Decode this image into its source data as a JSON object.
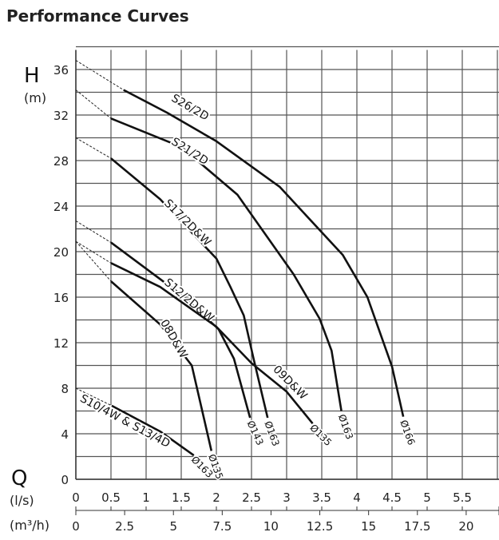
{
  "chart_data": {
    "type": "line",
    "title": "Performance Curves",
    "ylabel": "H",
    "yunit": "(m)",
    "xlabel": "Q",
    "xunit": "(l/s)",
    "x2unit": "(m³/h)",
    "xlim": [
      0,
      6
    ],
    "ylim": [
      0,
      38
    ],
    "grid": true,
    "y_ticks": [
      0,
      4,
      8,
      12,
      16,
      20,
      24,
      28,
      32,
      36
    ],
    "x_ticks": [
      "0",
      "0.5",
      "1",
      "1.5",
      "2",
      "2.5",
      "3",
      "3.5",
      "4",
      "4.5",
      "5",
      "5.5"
    ],
    "x2_ticks": [
      "0",
      "2.5",
      "5",
      "7.5",
      "10",
      "12.5",
      "15",
      "17.5",
      "20"
    ],
    "series": [
      {
        "name": "S26/2D",
        "end_label": "Ø166",
        "dashed": [
          [
            0,
            36.8
          ],
          [
            0.68,
            34.2
          ]
        ],
        "points": [
          [
            0.68,
            34.2
          ],
          [
            1.3,
            32.2
          ],
          [
            2.0,
            29.7
          ],
          [
            2.9,
            25.7
          ],
          [
            3.8,
            19.7
          ],
          [
            4.15,
            16.0
          ],
          [
            4.5,
            9.9
          ],
          [
            4.66,
            5.5
          ]
        ]
      },
      {
        "name": "S21/2D",
        "end_label": "Ø163",
        "dashed": [
          [
            0,
            34.2
          ],
          [
            0.5,
            31.7
          ]
        ],
        "points": [
          [
            0.5,
            31.7
          ],
          [
            1.5,
            29.2
          ],
          [
            2.3,
            25.0
          ],
          [
            3.1,
            18.0
          ],
          [
            3.47,
            14.1
          ],
          [
            3.64,
            11.3
          ],
          [
            3.78,
            6.0
          ]
        ]
      },
      {
        "name": "S17/2D&W",
        "end_label": "Ø163",
        "dashed": [
          [
            0,
            30.0
          ],
          [
            0.5,
            28.2
          ]
        ],
        "points": [
          [
            0.5,
            28.2
          ],
          [
            1.2,
            24.6
          ],
          [
            2.0,
            19.4
          ],
          [
            2.2,
            16.9
          ],
          [
            2.39,
            14.4
          ],
          [
            2.53,
            10.6
          ],
          [
            2.73,
            5.4
          ]
        ]
      },
      {
        "name": "S12/2D&W",
        "end_label": "Ø143",
        "dashed": [
          [
            0,
            22.7
          ],
          [
            0.5,
            20.8
          ]
        ],
        "points": [
          [
            0.5,
            20.8
          ],
          [
            1.5,
            16.2
          ],
          [
            2.03,
            13.2
          ],
          [
            2.25,
            10.6
          ],
          [
            2.48,
            5.4
          ]
        ]
      },
      {
        "name": "09D&W",
        "end_label": "Ø135",
        "dashed": [
          [
            0,
            20.9
          ],
          [
            0.5,
            19.0
          ]
        ],
        "points": [
          [
            0.5,
            19.0
          ],
          [
            1.2,
            16.9
          ],
          [
            2.0,
            13.4
          ],
          [
            2.5,
            10.2
          ],
          [
            3.0,
            7.7
          ],
          [
            3.37,
            4.9
          ]
        ]
      },
      {
        "name": "08D&W",
        "end_label": "Ø135",
        "dashed": [
          [
            0,
            20.9
          ],
          [
            0.5,
            17.4
          ]
        ],
        "points": [
          [
            0.5,
            17.4
          ],
          [
            1.2,
            13.6
          ],
          [
            1.65,
            10.0
          ],
          [
            1.93,
            2.5
          ]
        ]
      },
      {
        "name": "S10/4W & S13/4D",
        "end_label": "Ø163",
        "dashed": [
          [
            0,
            8.0
          ],
          [
            0.5,
            6.5
          ]
        ],
        "points": [
          [
            0.5,
            6.5
          ],
          [
            1.2,
            4.2
          ],
          [
            1.68,
            2.1
          ]
        ]
      }
    ]
  }
}
